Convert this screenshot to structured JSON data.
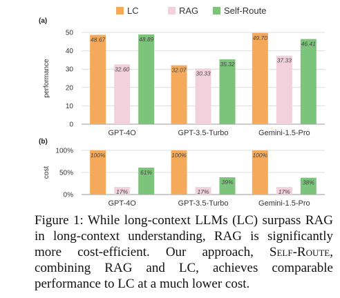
{
  "chart_data": [
    {
      "type": "bar",
      "panel_label": "(a)",
      "categories": [
        "GPT-4O",
        "GPT-3.5-Turbo",
        "Gemini-1.5-Pro"
      ],
      "series": [
        {
          "name": "LC",
          "values": [
            48.67,
            32.07,
            49.7
          ],
          "labels": [
            "48.67",
            "32.07",
            "49.70"
          ],
          "color": "#F5A95B"
        },
        {
          "name": "RAG",
          "values": [
            32.6,
            30.33,
            37.33
          ],
          "labels": [
            "32.60",
            "30.33",
            "37.33"
          ],
          "color": "#F2D0DC"
        },
        {
          "name": "Self-Route",
          "values": [
            48.89,
            35.32,
            46.41
          ],
          "labels": [
            "48.89",
            "35.32",
            "46.41"
          ],
          "color": "#7CC47B"
        }
      ],
      "ylabel": "performance",
      "ylim": [
        0,
        50
      ],
      "yticks": [
        "0",
        "10",
        "20",
        "30",
        "40",
        "50"
      ],
      "grid": true,
      "legend": "top"
    },
    {
      "type": "bar",
      "panel_label": "(b)",
      "categories": [
        "GPT-4O",
        "GPT-3.5-Turbo",
        "Gemini-1.5-Pro"
      ],
      "series": [
        {
          "name": "LC",
          "values": [
            100,
            100,
            100
          ],
          "labels": [
            "100%",
            "100%",
            "100%"
          ],
          "color": "#F5A95B"
        },
        {
          "name": "RAG",
          "values": [
            17,
            17,
            17
          ],
          "labels": [
            "17%",
            "17%",
            "17%"
          ],
          "color": "#F2D0DC"
        },
        {
          "name": "Self-Route",
          "values": [
            61,
            39,
            38
          ],
          "labels": [
            "61%",
            "39%",
            "38%"
          ],
          "color": "#7CC47B"
        }
      ],
      "ylabel": "cost",
      "ylim": [
        0,
        100
      ],
      "yticks": [
        "0%",
        "50%",
        "100%"
      ],
      "grid": true
    }
  ],
  "caption": {
    "prefix": "Figure 1: While long-context LLMs (LC) surpass RAG in long-context understanding, RAG is significantly more cost-efficient. Our approach, ",
    "method": "Self-Route",
    "suffix": ", combining RAG and LC, achieves comparable performance to LC at a much lower cost."
  }
}
